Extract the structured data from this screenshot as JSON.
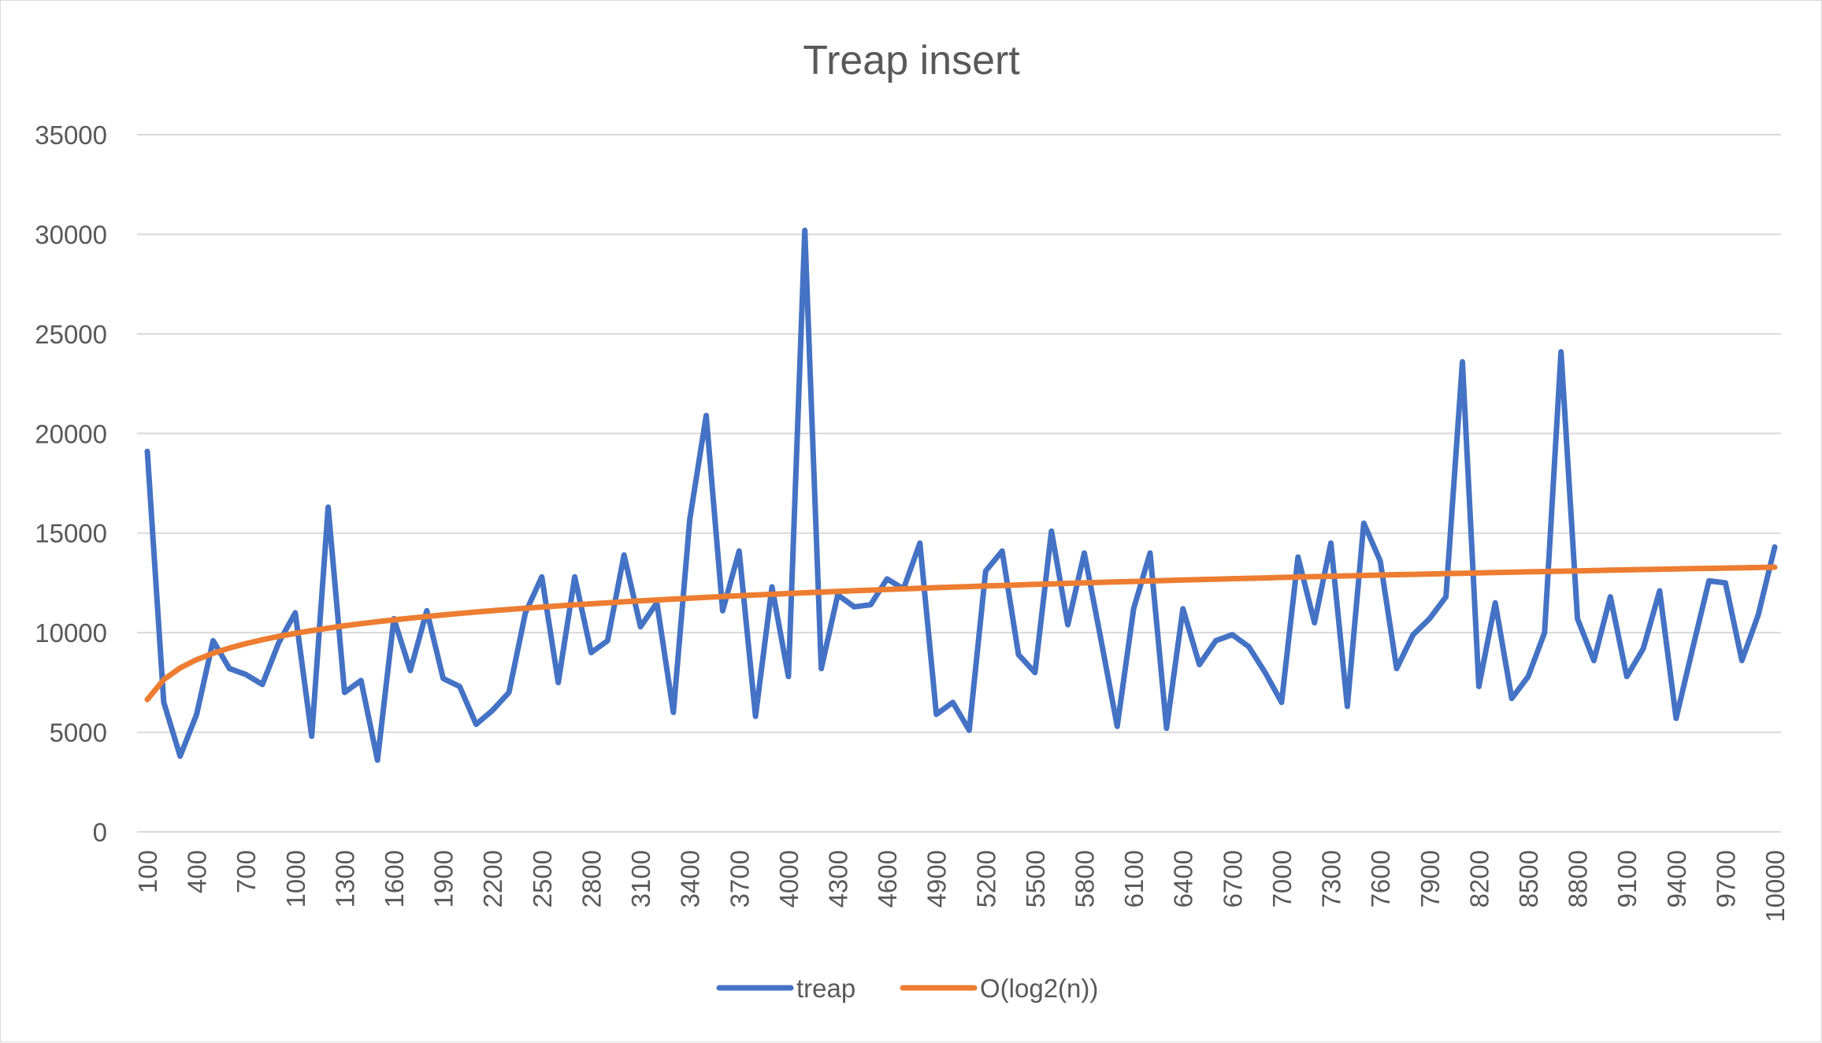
{
  "chart_data": {
    "type": "line",
    "title": "Treap insert",
    "xlabel": "",
    "ylabel": "",
    "ylim": [
      0,
      35000
    ],
    "y_ticks": [
      0,
      5000,
      10000,
      15000,
      20000,
      25000,
      30000,
      35000
    ],
    "x": [
      100,
      200,
      300,
      400,
      500,
      600,
      700,
      800,
      900,
      1000,
      1100,
      1200,
      1300,
      1400,
      1500,
      1600,
      1700,
      1800,
      1900,
      2000,
      2100,
      2200,
      2300,
      2400,
      2500,
      2600,
      2700,
      2800,
      2900,
      3000,
      3100,
      3200,
      3300,
      3400,
      3500,
      3600,
      3700,
      3800,
      3900,
      4000,
      4100,
      4200,
      4300,
      4400,
      4500,
      4600,
      4700,
      4800,
      4900,
      5000,
      5100,
      5200,
      5300,
      5400,
      5500,
      5600,
      5700,
      5800,
      5900,
      6000,
      6100,
      6200,
      6300,
      6400,
      6500,
      6600,
      6700,
      6800,
      6900,
      7000,
      7100,
      7200,
      7300,
      7400,
      7500,
      7600,
      7700,
      7800,
      7900,
      8000,
      8100,
      8200,
      8300,
      8400,
      8500,
      8600,
      8700,
      8800,
      8900,
      9000,
      9100,
      9200,
      9300,
      9400,
      9500,
      9600,
      9700,
      9800,
      9900,
      10000
    ],
    "x_tick_labels": [
      "100",
      "400",
      "700",
      "1000",
      "1300",
      "1600",
      "1900",
      "2200",
      "2500",
      "2800",
      "3100",
      "3400",
      "3700",
      "4000",
      "4300",
      "4600",
      "4900",
      "5200",
      "5500",
      "5800",
      "6100",
      "6400",
      "6700",
      "7000",
      "7300",
      "7600",
      "7900",
      "8200",
      "8500",
      "8800",
      "9100",
      "9400",
      "9700",
      "10000"
    ],
    "grid": true,
    "legend_position": "bottom",
    "series": [
      {
        "name": "treap",
        "color": "#4472c4",
        "values": [
          19100,
          6500,
          3800,
          5900,
          9600,
          8200,
          7900,
          7400,
          9500,
          11000,
          4800,
          16300,
          7000,
          7600,
          3600,
          10700,
          8100,
          11100,
          7700,
          7300,
          5400,
          6100,
          7000,
          11000,
          12800,
          7500,
          12800,
          9000,
          9600,
          13900,
          10300,
          11500,
          6000,
          15700,
          20900,
          11100,
          14100,
          5800,
          12300,
          7800,
          30200,
          8200,
          11900,
          11300,
          11400,
          12700,
          12200,
          14500,
          5900,
          6500,
          5100,
          13100,
          14100,
          8900,
          8000,
          15100,
          10400,
          14000,
          9700,
          5300,
          11200,
          14000,
          5200,
          11200,
          8400,
          9600,
          9900,
          9300,
          8000,
          6500,
          13800,
          10500,
          14500,
          6300,
          15500,
          13600,
          8200,
          9900,
          10700,
          11800,
          23600,
          7300,
          11500,
          6700,
          7800,
          10000,
          24100,
          10700,
          8600,
          11800,
          7800,
          9200,
          12100,
          5700,
          9200,
          12600,
          12500,
          8600,
          10900,
          14300
        ]
      },
      {
        "name": "O(log2(n))",
        "color": "#ed7d31",
        "values": [
          6644,
          7644,
          8229,
          8644,
          8966,
          9229,
          9451,
          9644,
          9814,
          9966,
          10104,
          10229,
          10345,
          10451,
          10551,
          10644,
          10731,
          10814,
          10892,
          10966,
          11037,
          11104,
          11169,
          11229,
          11288,
          11345,
          11399,
          11451,
          11501,
          11551,
          11598,
          11644,
          11688,
          11731,
          11773,
          11814,
          11853,
          11892,
          11929,
          11966,
          12002,
          12037,
          12071,
          12104,
          12137,
          12169,
          12199,
          12229,
          12259,
          12288,
          12317,
          12345,
          12372,
          12399,
          12425,
          12451,
          12476,
          12501,
          12526,
          12551,
          12574,
          12598,
          12621,
          12644,
          12666,
          12688,
          12710,
          12731,
          12752,
          12773,
          12793,
          12814,
          12834,
          12853,
          12873,
          12892,
          12911,
          12929,
          12948,
          12966,
          12984,
          13002,
          13020,
          13037,
          13054,
          13071,
          13088,
          13104,
          13120,
          13137,
          13152,
          13169,
          13184,
          13199,
          13215,
          13229,
          13244,
          13259,
          13273,
          13288
        ]
      }
    ]
  }
}
